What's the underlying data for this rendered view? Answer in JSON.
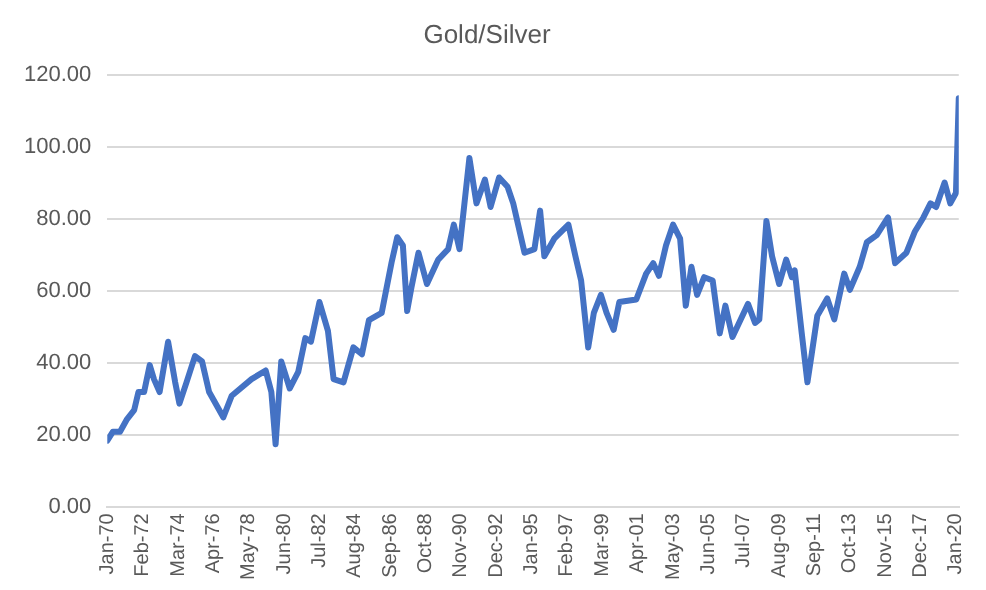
{
  "chart_data": {
    "type": "line",
    "title": "Gold/Silver",
    "color": "#4472c4",
    "grid": "y",
    "legend": false,
    "x": [
      "1970-01",
      "1970-05",
      "1970-10",
      "1971-03",
      "1971-08",
      "1971-11",
      "1972-03",
      "1972-07",
      "1972-10",
      "1973-02",
      "1973-08",
      "1974-01",
      "1974-04",
      "1974-09",
      "1975-03",
      "1975-08",
      "1976-01",
      "1976-11",
      "1977-05",
      "1978-07",
      "1979-05",
      "1979-09",
      "1979-12",
      "1980-04",
      "1980-10",
      "1981-04",
      "1981-09",
      "1982-01",
      "1982-07",
      "1983-01",
      "1983-05",
      "1983-12",
      "1984-07",
      "1985-01",
      "1985-06",
      "1986-03",
      "1986-10",
      "1987-02",
      "1987-06",
      "1987-09",
      "1987-12",
      "1988-05",
      "1988-11",
      "1989-07",
      "1990-02",
      "1990-06",
      "1990-10",
      "1991-05",
      "1991-10",
      "1992-04",
      "1992-08",
      "1993-02",
      "1993-08",
      "1993-12",
      "1994-08",
      "1995-03",
      "1995-07",
      "1995-10",
      "1996-05",
      "1997-03",
      "1997-08",
      "1997-12",
      "1998-05",
      "1998-09",
      "1999-02",
      "1999-06",
      "1999-11",
      "2000-03",
      "2001-03",
      "2001-10",
      "2002-03",
      "2002-07",
      "2002-12",
      "2003-05",
      "2003-10",
      "2004-02",
      "2004-06",
      "2004-10",
      "2005-03",
      "2005-09",
      "2006-02",
      "2006-06",
      "2006-11",
      "2007-10",
      "2008-03",
      "2008-06",
      "2008-11",
      "2009-03",
      "2009-08",
      "2010-01",
      "2010-05",
      "2010-07",
      "2010-12",
      "2011-04",
      "2011-07",
      "2011-11",
      "2012-06",
      "2012-11",
      "2013-06",
      "2013-10",
      "2014-05",
      "2014-10",
      "2015-05",
      "2016-01",
      "2016-06",
      "2017-02",
      "2017-08",
      "2018-02",
      "2018-07",
      "2018-11",
      "2019-05",
      "2019-09",
      "2020-01",
      "2020-03"
    ],
    "values": [
      18.5,
      21,
      21,
      24.5,
      27,
      32,
      32,
      39.5,
      35.6,
      32,
      46,
      34.7,
      28.8,
      34.7,
      42,
      40.5,
      32,
      25,
      31,
      35.6,
      38,
      32,
      17.5,
      40.5,
      33,
      37.6,
      47,
      46,
      57,
      49,
      35.6,
      34.7,
      44.4,
      42.5,
      52,
      54,
      68,
      75,
      72.7,
      54.5,
      61,
      70.7,
      62,
      68.8,
      71.7,
      78.5,
      71.7,
      97,
      84.4,
      91,
      83.4,
      91.6,
      89,
      84.4,
      70.7,
      71.7,
      82.4,
      69.7,
      74.6,
      78.5,
      69.7,
      63,
      44.4,
      54,
      59,
      54,
      49.3,
      57,
      57.7,
      64.9,
      67.8,
      64.3,
      72.7,
      78.5,
      74.6,
      56,
      66.8,
      59,
      63.9,
      63,
      48.3,
      56,
      47.3,
      56.5,
      51.2,
      52.2,
      79.5,
      69.7,
      62,
      68.8,
      63.9,
      65.8,
      48.3,
      34.7,
      42.5,
      53.2,
      58,
      52.2,
      64.9,
      60.4,
      66.8,
      73.6,
      75.6,
      80.5,
      67.8,
      70.7,
      76.6,
      80.5,
      84.4,
      83.4,
      90.2,
      84.4,
      87.3,
      113.6
    ],
    "xlim": [
      "1970-01",
      "2020-03"
    ],
    "xticks": [
      {
        "value": "1970-01",
        "label": "Jan-70"
      },
      {
        "value": "1972-02",
        "label": "Feb-72"
      },
      {
        "value": "1974-03",
        "label": "Mar-74"
      },
      {
        "value": "1976-04",
        "label": "Apr-76"
      },
      {
        "value": "1978-05",
        "label": "May-78"
      },
      {
        "value": "1980-06",
        "label": "Jun-80"
      },
      {
        "value": "1982-07",
        "label": "Jul-82"
      },
      {
        "value": "1984-08",
        "label": "Aug-84"
      },
      {
        "value": "1986-09",
        "label": "Sep-86"
      },
      {
        "value": "1988-10",
        "label": "Oct-88"
      },
      {
        "value": "1990-11",
        "label": "Nov-90"
      },
      {
        "value": "1992-12",
        "label": "Dec-92"
      },
      {
        "value": "1995-01",
        "label": "Jan-95"
      },
      {
        "value": "1997-02",
        "label": "Feb-97"
      },
      {
        "value": "1999-03",
        "label": "Mar-99"
      },
      {
        "value": "2001-04",
        "label": "Apr-01"
      },
      {
        "value": "2003-05",
        "label": "May-03"
      },
      {
        "value": "2005-06",
        "label": "Jun-05"
      },
      {
        "value": "2007-07",
        "label": "Jul-07"
      },
      {
        "value": "2009-08",
        "label": "Aug-09"
      },
      {
        "value": "2011-09",
        "label": "Sep-11"
      },
      {
        "value": "2013-10",
        "label": "Oct-13"
      },
      {
        "value": "2015-11",
        "label": "Nov-15"
      },
      {
        "value": "2017-12",
        "label": "Dec-17"
      },
      {
        "value": "2020-01",
        "label": "Jan-20"
      }
    ],
    "ylim": [
      0,
      120
    ],
    "yticks": [
      {
        "value": 0,
        "label": "0.00"
      },
      {
        "value": 20,
        "label": "20.00"
      },
      {
        "value": 40,
        "label": "40.00"
      },
      {
        "value": 60,
        "label": "60.00"
      },
      {
        "value": 80,
        "label": "80.00"
      },
      {
        "value": 100,
        "label": "100.00"
      },
      {
        "value": 120,
        "label": "120.00"
      }
    ]
  }
}
